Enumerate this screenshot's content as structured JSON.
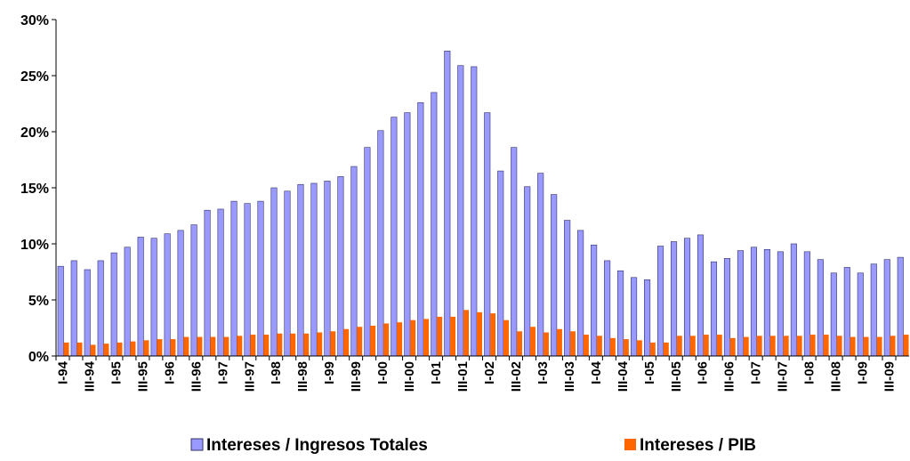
{
  "chart_data": {
    "type": "bar",
    "categories": [
      "I-94",
      null,
      "III-94",
      null,
      "I-95",
      null,
      "III-95",
      null,
      "I-96",
      null,
      "III-96",
      null,
      "I-97",
      null,
      "III-97",
      null,
      "I-98",
      null,
      "III-98",
      null,
      "I-99",
      null,
      "III-99",
      null,
      "I-00",
      null,
      "III-00",
      null,
      "I-01",
      null,
      "III-01",
      null,
      "I-02",
      null,
      "III-02",
      null,
      "I-03",
      null,
      "III-03",
      null,
      "I-04",
      null,
      "III-04",
      null,
      "I-05",
      null,
      "III-05",
      null,
      "I-06",
      null,
      "III-06",
      null,
      "I-07",
      null,
      "III-07",
      null,
      "I-08",
      null,
      "III-08",
      null,
      "I-09",
      null,
      "III-09",
      null
    ],
    "series": [
      {
        "name": "Intereses / Ingresos Totales",
        "color": "#9999ff",
        "values": [
          8.0,
          8.5,
          7.7,
          8.5,
          9.2,
          9.7,
          10.6,
          10.5,
          10.9,
          11.2,
          11.7,
          13.0,
          13.1,
          13.8,
          13.6,
          13.8,
          15.0,
          14.7,
          15.3,
          15.4,
          15.6,
          16.0,
          16.9,
          18.6,
          20.1,
          21.3,
          21.7,
          22.6,
          23.5,
          27.2,
          25.9,
          25.8,
          21.7,
          16.5,
          18.6,
          15.1,
          16.3,
          14.4,
          12.1,
          11.2,
          9.9,
          8.5,
          7.6,
          7.0,
          6.8,
          9.8,
          10.2,
          10.5,
          10.8,
          8.4,
          8.7,
          9.4,
          9.7,
          9.5,
          9.3,
          10.0,
          9.3,
          8.6,
          7.4,
          7.9,
          7.4,
          8.2,
          8.6,
          8.8
        ]
      },
      {
        "name": "Intereses / PIB",
        "color": "#ff6600",
        "values": [
          1.2,
          1.2,
          1.0,
          1.1,
          1.2,
          1.3,
          1.4,
          1.5,
          1.5,
          1.7,
          1.7,
          1.7,
          1.7,
          1.8,
          1.9,
          1.9,
          2.0,
          2.0,
          2.0,
          2.1,
          2.2,
          2.4,
          2.6,
          2.7,
          2.9,
          3.0,
          3.2,
          3.3,
          3.5,
          3.5,
          4.1,
          3.9,
          3.8,
          3.2,
          2.2,
          2.6,
          2.1,
          2.4,
          2.2,
          1.9,
          1.8,
          1.6,
          1.5,
          1.4,
          1.2,
          1.2,
          1.8,
          1.8,
          1.9,
          1.9,
          1.6,
          1.7,
          1.8,
          1.8,
          1.8,
          1.8,
          1.9,
          1.9,
          1.8,
          1.7,
          1.7,
          1.7,
          1.8,
          1.9
        ]
      }
    ],
    "ylim": [
      0,
      30
    ],
    "yticks": [
      {
        "value": 0,
        "label": "0%"
      },
      {
        "value": 5,
        "label": "5%"
      },
      {
        "value": 10,
        "label": "10%"
      },
      {
        "value": 15,
        "label": "15%"
      },
      {
        "value": 20,
        "label": "20%"
      },
      {
        "value": 25,
        "label": "25%"
      },
      {
        "value": 30,
        "label": "30%"
      }
    ],
    "legend": "bottom"
  }
}
